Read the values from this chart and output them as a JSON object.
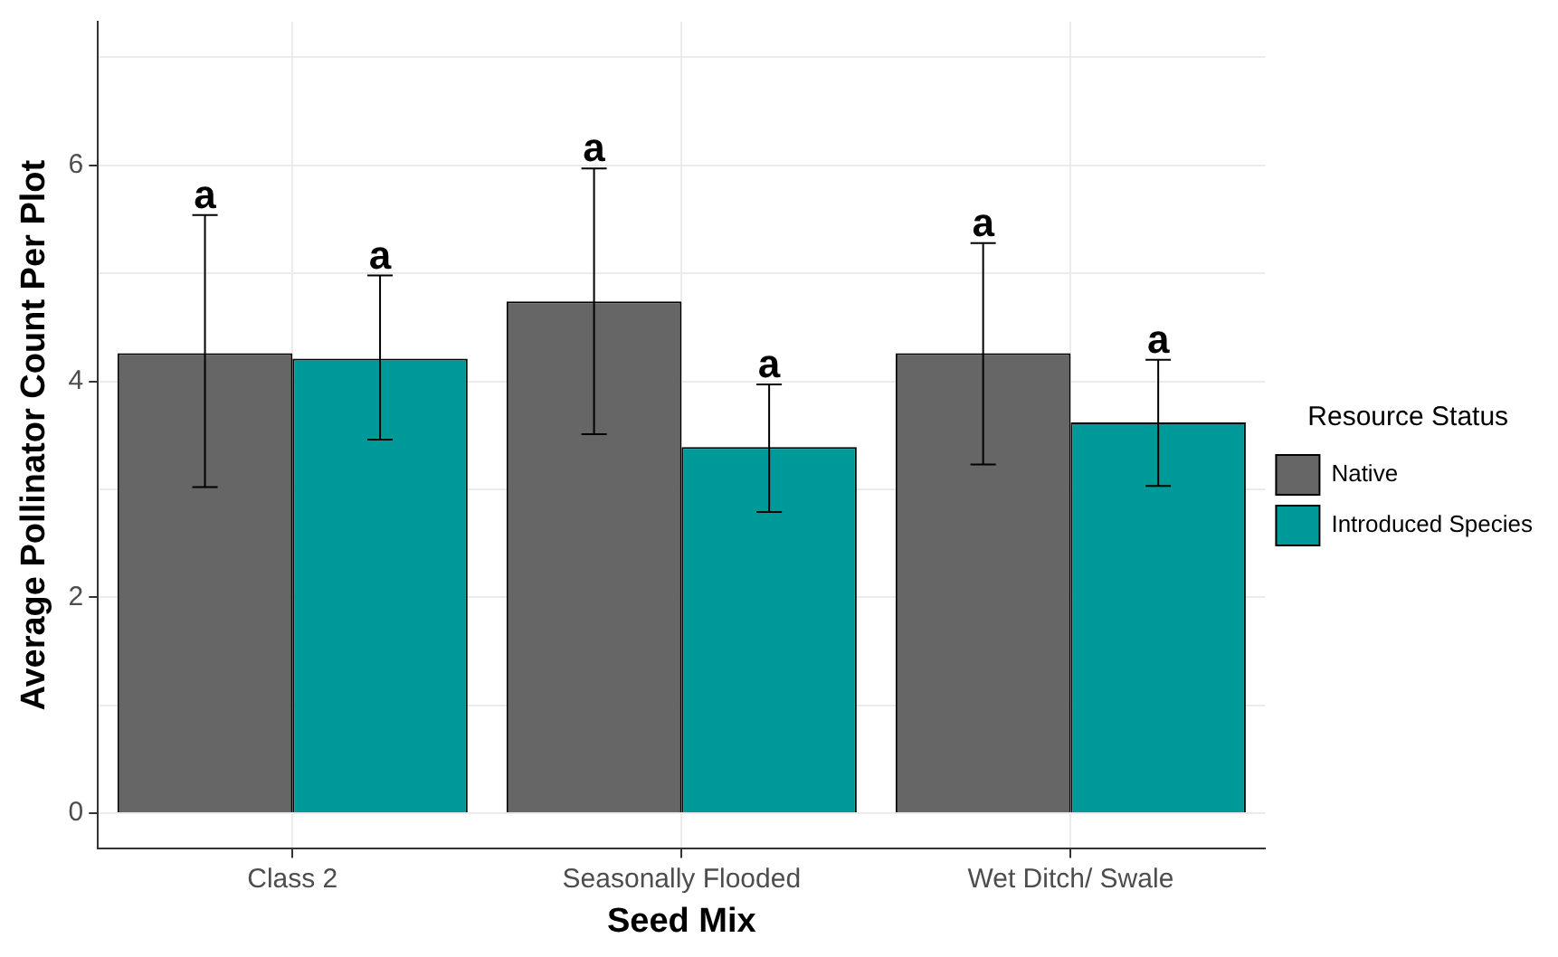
{
  "chart_data": {
    "type": "bar",
    "xlabel": "Seed Mix",
    "ylabel": "Average Pollinator Count Per Plot",
    "legend_title": "Resource Status",
    "categories": [
      "Class 2",
      "Seasonally Flooded",
      "Wet Ditch/ Swale"
    ],
    "series": [
      {
        "name": "Native",
        "color": "#666666",
        "values": [
          4.26,
          4.74,
          4.26
        ],
        "errors": [
          [
            3.02,
            5.54
          ],
          [
            3.51,
            5.97
          ],
          [
            3.23,
            5.28
          ]
        ]
      },
      {
        "name": "Introduced Species",
        "color": "#009999",
        "values": [
          4.21,
          3.39,
          3.62
        ],
        "errors": [
          [
            3.46,
            4.98
          ],
          [
            2.79,
            3.97
          ],
          [
            3.03,
            4.2
          ]
        ]
      }
    ],
    "ylim": [
      -0.33,
      7.33
    ],
    "yticks": [
      0,
      {
        "value": 1,
        "label": null
      },
      2,
      {
        "value": 3,
        "label": null
      },
      4,
      {
        "value": 5,
        "label": null
      },
      6,
      {
        "value": 7,
        "label": null
      }
    ],
    "grid": true,
    "legend": "right",
    "annotations": [
      "a",
      "a",
      "a",
      "a",
      "a",
      "a"
    ]
  }
}
